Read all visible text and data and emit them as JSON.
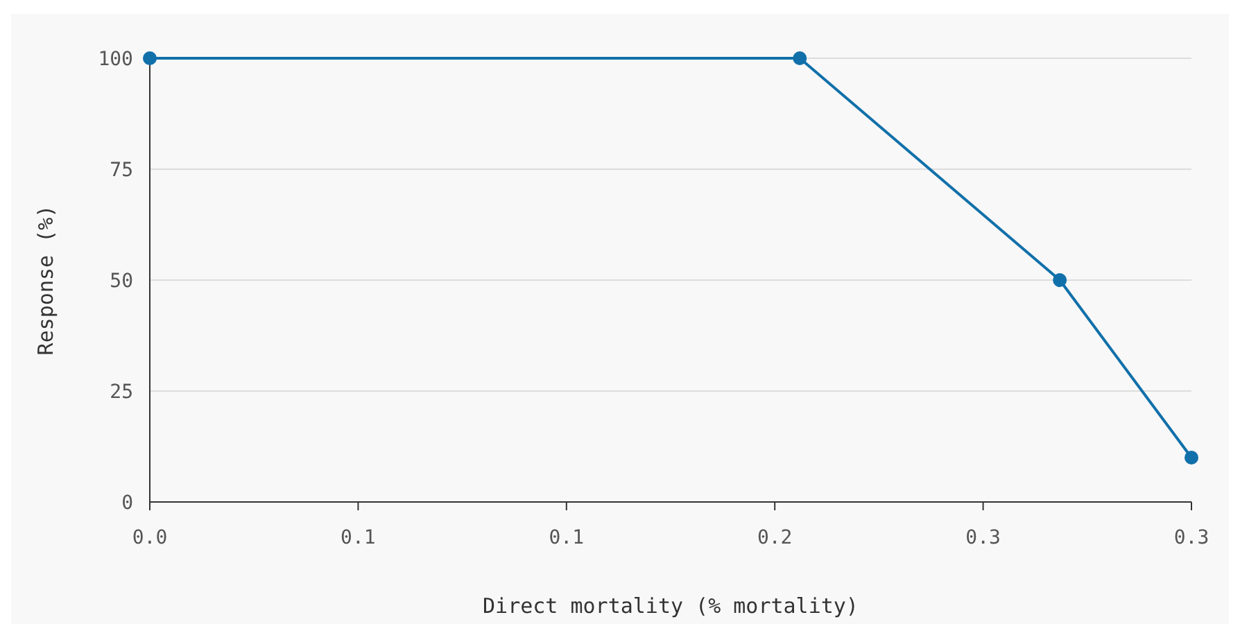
{
  "chart_data": {
    "type": "line",
    "xlabel": "Direct mortality (% mortality)",
    "ylabel": "Response (%)",
    "x": [
      0,
      0.195,
      0.273,
      0.3125
    ],
    "series": [
      {
        "color": "#1170aa",
        "values": [
          100,
          100,
          50,
          10
        ]
      }
    ],
    "xlim": [
      0,
      0.3125
    ],
    "xticks": [
      {
        "value": 0,
        "label": "0.0"
      },
      {
        "value": 0.0625,
        "label": "0.1"
      },
      {
        "value": 0.125,
        "label": "0.1"
      },
      {
        "value": 0.1875,
        "label": "0.2"
      },
      {
        "value": 0.25,
        "label": "0.3"
      },
      {
        "value": 0.3125,
        "label": "0.3"
      }
    ],
    "ylim": [
      0,
      100
    ],
    "yticks": [
      0,
      25,
      50,
      75,
      100
    ],
    "grid": "y",
    "marker": "circle",
    "line_style": "solid"
  }
}
